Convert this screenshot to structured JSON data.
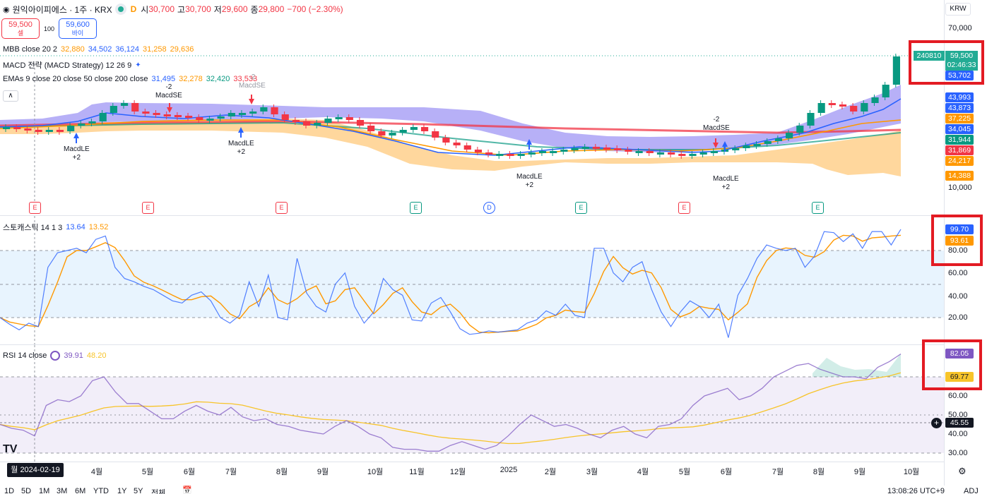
{
  "header": {
    "symbol": "원익아이피에스 · 1주 · KRX",
    "market_badge": "D",
    "ohlc": [
      {
        "k": "시",
        "v": "30,700"
      },
      {
        "k": "고",
        "v": "30,700"
      },
      {
        "k": "저",
        "v": "29,600"
      },
      {
        "k": "종",
        "v": "29,800"
      }
    ],
    "change": "−700 (−2.30%)"
  },
  "bidask": {
    "sell_price": "59,500",
    "sell_label": "셀",
    "spread": "100",
    "buy_price": "59,600",
    "buy_label": "바이"
  },
  "indicators": {
    "mbb": {
      "label": "MBB close 20 2",
      "values": [
        "32,880",
        "34,502",
        "36,124",
        "31,258",
        "29,636"
      ]
    },
    "macd": {
      "label": "MACD 전략 (MACD Strategy) 12 26 9"
    },
    "emas": {
      "label": "EMAs 9 close 20 close 50 close 200 close",
      "values": [
        "31,495",
        "32,278",
        "32,420",
        "33,533"
      ]
    },
    "stoch": {
      "label": "스토캐스틱 14 1 3",
      "values": [
        "13.64",
        "13.52"
      ]
    },
    "rsi": {
      "label": "RSI 14 close",
      "values": [
        "39.91",
        "48.20"
      ]
    }
  },
  "price_axis": {
    "currency": "KRW",
    "ticks": [
      "70,000",
      "10,000"
    ],
    "last_tag": {
      "code": "240810",
      "price": "59,500",
      "countdown": "02:46:33"
    },
    "tags": [
      {
        "value": "53,702",
        "color": "#2962ff"
      },
      {
        "value": "43,993",
        "color": "#2962ff"
      },
      {
        "value": "43,873",
        "color": "#2962ff"
      },
      {
        "value": "37,225",
        "color": "#ff9800"
      },
      {
        "value": "34,045",
        "color": "#2962ff"
      },
      {
        "value": "31,944",
        "color": "#089981"
      },
      {
        "value": "31,869",
        "color": "#f23645"
      },
      {
        "value": "24,217",
        "color": "#ff9800"
      },
      {
        "value": "14,388",
        "color": "#ff9800"
      }
    ]
  },
  "stoch_axis": {
    "ticks": [
      "80.00",
      "60.00",
      "40.00",
      "20.00"
    ],
    "k_tag": "99.70",
    "d_tag": "93.61"
  },
  "rsi_axis": {
    "ticks": [
      "60.00",
      "50.00",
      "40.00",
      "30.00"
    ],
    "rsi_tag": "82.05",
    "ma_tag": "69.77",
    "cross_tag": "45.55"
  },
  "signals": [
    {
      "text": "MacdLE",
      "sub": "+2"
    },
    {
      "text": "MacdSE",
      "sub": "-2"
    },
    {
      "text": "MacdLE",
      "sub": "+2"
    },
    {
      "text": "MacdSE",
      "sub": "-2"
    },
    {
      "text": "MacdLE",
      "sub": "+2"
    },
    {
      "text": "MacdSE",
      "sub": "-2"
    },
    {
      "text": "MacdLE",
      "sub": "+2"
    }
  ],
  "events": [
    "E",
    "E",
    "E",
    "E",
    "D",
    "E",
    "E",
    "E"
  ],
  "time_axis": {
    "cursor_date": "월 2024-02-19",
    "labels": [
      "4월",
      "5월",
      "6월",
      "7월",
      "8월",
      "9월",
      "10월",
      "11월",
      "12월",
      "2025",
      "2월",
      "3월",
      "4월",
      "5월",
      "6월",
      "7월",
      "8월",
      "9월",
      "10월"
    ]
  },
  "bottom": {
    "ranges": [
      "1D",
      "5D",
      "1M",
      "3M",
      "6M",
      "YTD",
      "1Y",
      "5Y",
      "전체"
    ],
    "clock": "13:08:26 UTC+9",
    "adj": "ADJ"
  },
  "colors": {
    "up": "#089981",
    "down": "#f23645",
    "accent": "#2962ff",
    "highlight": "#e31b23"
  }
}
